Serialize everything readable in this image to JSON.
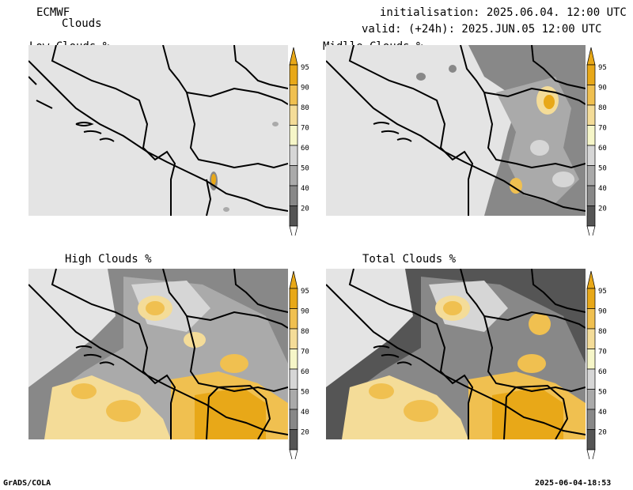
{
  "header": {
    "source": "ECMWF",
    "product": "Clouds",
    "initialisation": "initialisation: 2025.06.04. 12:00 UTC",
    "valid": "valid: (+24h): 2025.JUN.05 12:00 UTC"
  },
  "panels": [
    {
      "title": "Low Clouds %"
    },
    {
      "title": "Midlle Clouds %"
    },
    {
      "title": "High Clouds %"
    },
    {
      "title": "Total Clouds %"
    }
  ],
  "colorbar": {
    "levels": [
      "95",
      "90",
      "80",
      "70",
      "60",
      "50",
      "40",
      "20"
    ],
    "colors": [
      "#e8a818",
      "#f0c050",
      "#f4dc98",
      "#f6f6c8",
      "#d6d6d6",
      "#aaaaaa",
      "#888888",
      "#555555"
    ]
  },
  "footer": {
    "left": "GrADS/COLA",
    "right": "2025-06-04-18:53"
  }
}
